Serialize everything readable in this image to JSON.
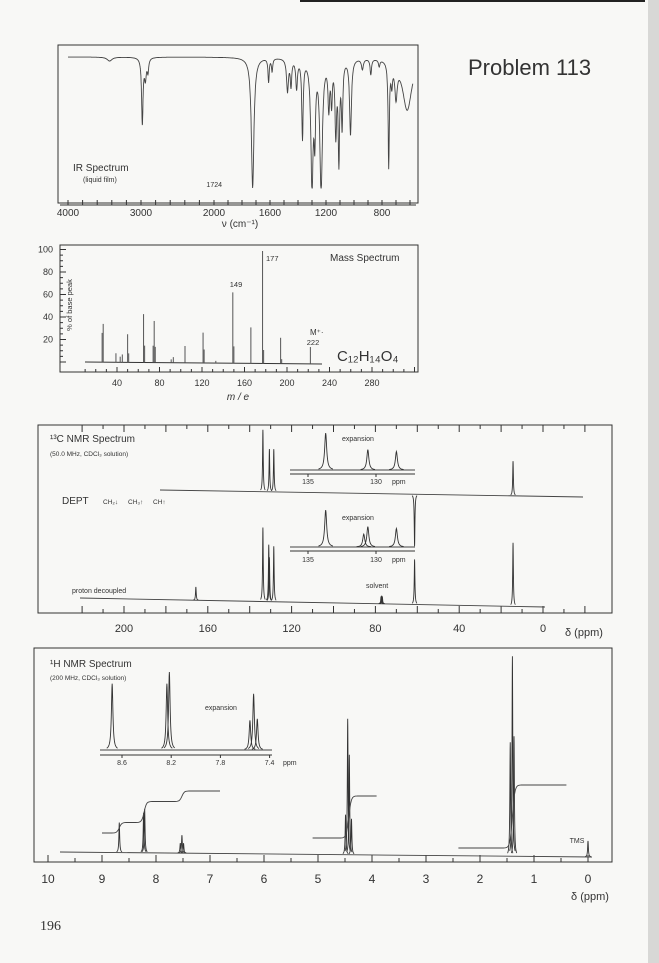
{
  "page": {
    "problem_title": "Problem 113",
    "page_number": "196"
  },
  "chart_data": [
    {
      "type": "line",
      "title": "IR Spectrum",
      "subtitle": "(liquid film)",
      "xlabel": "ν (cm⁻¹)",
      "xlim": [
        4000,
        580
      ],
      "xticks": [
        "4000",
        "3000",
        "2000",
        "1600",
        "1200",
        "800"
      ],
      "annotation": "1724",
      "bands": [
        {
          "wavenumber": 3430,
          "absorbance": 0.03,
          "width": 40
        },
        {
          "wavenumber": 2982,
          "absorbance": 0.5,
          "width": 12
        },
        {
          "wavenumber": 2940,
          "absorbance": 0.15,
          "width": 15
        },
        {
          "wavenumber": 2905,
          "absorbance": 0.1,
          "width": 12
        },
        {
          "wavenumber": 1724,
          "absorbance": 1.0,
          "width": 11
        },
        {
          "wavenumber": 1610,
          "absorbance": 0.18,
          "width": 5
        },
        {
          "wavenumber": 1585,
          "absorbance": 0.1,
          "width": 5
        },
        {
          "wavenumber": 1475,
          "absorbance": 0.25,
          "width": 8
        },
        {
          "wavenumber": 1450,
          "absorbance": 0.2,
          "width": 6
        },
        {
          "wavenumber": 1410,
          "absorbance": 0.22,
          "width": 7
        },
        {
          "wavenumber": 1368,
          "absorbance": 0.6,
          "width": 6
        },
        {
          "wavenumber": 1300,
          "absorbance": 0.95,
          "width": 10
        },
        {
          "wavenumber": 1280,
          "absorbance": 0.5,
          "width": 6
        },
        {
          "wavenumber": 1235,
          "absorbance": 1.0,
          "width": 11
        },
        {
          "wavenumber": 1180,
          "absorbance": 0.35,
          "width": 7
        },
        {
          "wavenumber": 1160,
          "absorbance": 0.3,
          "width": 6
        },
        {
          "wavenumber": 1130,
          "absorbance": 0.55,
          "width": 7
        },
        {
          "wavenumber": 1108,
          "absorbance": 0.75,
          "width": 6
        },
        {
          "wavenumber": 1085,
          "absorbance": 0.5,
          "width": 6
        },
        {
          "wavenumber": 1025,
          "absorbance": 0.58,
          "width": 8
        },
        {
          "wavenumber": 940,
          "absorbance": 0.08,
          "width": 8
        },
        {
          "wavenumber": 880,
          "absorbance": 0.12,
          "width": 6
        },
        {
          "wavenumber": 820,
          "absorbance": 0.05,
          "width": 6
        },
        {
          "wavenumber": 752,
          "absorbance": 0.8,
          "width": 5
        },
        {
          "wavenumber": 730,
          "absorbance": 0.15,
          "width": 6
        },
        {
          "wavenumber": 700,
          "absorbance": 0.25,
          "width": 10
        },
        {
          "wavenumber": 620,
          "absorbance": 0.4,
          "width": 40
        }
      ]
    },
    {
      "type": "bar",
      "title": "Mass Spectrum",
      "xlabel": "m / e",
      "ylabel": "% of base peak",
      "xlim": [
        0,
        320
      ],
      "ylim": [
        0,
        100
      ],
      "xticks": [
        "40",
        "80",
        "120",
        "160",
        "200",
        "240",
        "280"
      ],
      "yticks": [
        "20",
        "40",
        "60",
        "80",
        "100"
      ],
      "formula": "C₁₂H₁₄O₄",
      "molecular_ion_label": "M⁺·",
      "labeled_peaks": [
        "149",
        "177",
        "222"
      ],
      "peaks": [
        {
          "mz": 26,
          "intensity": 26
        },
        {
          "mz": 27,
          "intensity": 34
        },
        {
          "mz": 39,
          "intensity": 8
        },
        {
          "mz": 43,
          "intensity": 5
        },
        {
          "mz": 45,
          "intensity": 7
        },
        {
          "mz": 50,
          "intensity": 25
        },
        {
          "mz": 51,
          "intensity": 8
        },
        {
          "mz": 65,
          "intensity": 43
        },
        {
          "mz": 66,
          "intensity": 15
        },
        {
          "mz": 74,
          "intensity": 15
        },
        {
          "mz": 75,
          "intensity": 37
        },
        {
          "mz": 76,
          "intensity": 14
        },
        {
          "mz": 91,
          "intensity": 3
        },
        {
          "mz": 93,
          "intensity": 5
        },
        {
          "mz": 104,
          "intensity": 15
        },
        {
          "mz": 121,
          "intensity": 27
        },
        {
          "mz": 122,
          "intensity": 12
        },
        {
          "mz": 133,
          "intensity": 2
        },
        {
          "mz": 149,
          "intensity": 63
        },
        {
          "mz": 150,
          "intensity": 15
        },
        {
          "mz": 166,
          "intensity": 32
        },
        {
          "mz": 177,
          "intensity": 100
        },
        {
          "mz": 178,
          "intensity": 12
        },
        {
          "mz": 194,
          "intensity": 23
        },
        {
          "mz": 195,
          "intensity": 4
        },
        {
          "mz": 222,
          "intensity": 15
        }
      ]
    },
    {
      "type": "line",
      "title": "¹³C NMR Spectrum",
      "subtitle": "(50.0 MHz, CDCl₃ solution)",
      "xlabel": "δ (ppm)",
      "xlim": [
        220,
        0
      ],
      "xticks": [
        "200",
        "160",
        "120",
        "80",
        "40",
        "0"
      ],
      "dept_label": "DEPT",
      "dept_legend": [
        "CH₂↓",
        "CH₃↑",
        "CH↑"
      ],
      "decoupled_label": "proton decoupled",
      "solvent_label": "solvent",
      "dept_peaks": [
        {
          "shift": 133.7,
          "intensity": 1.0
        },
        {
          "shift": 130.6,
          "intensity": 0.69
        },
        {
          "shift": 128.5,
          "intensity": 0.69
        },
        {
          "shift": 61.3,
          "intensity": -0.84
        },
        {
          "shift": 14.3,
          "intensity": 0.56
        }
      ],
      "decoupled_peaks": [
        {
          "shift": 165.7,
          "intensity": 0.18
        },
        {
          "shift": 133.7,
          "intensity": 1.0
        },
        {
          "shift": 130.9,
          "intensity": 0.77
        },
        {
          "shift": 130.6,
          "intensity": 0.6
        },
        {
          "shift": 128.5,
          "intensity": 0.75
        },
        {
          "shift": 77.3,
          "intensity": 0.1
        },
        {
          "shift": 77.0,
          "intensity": 0.11
        },
        {
          "shift": 76.7,
          "intensity": 0.1
        },
        {
          "shift": 61.3,
          "intensity": 0.61
        },
        {
          "shift": 14.3,
          "intensity": 0.86
        }
      ],
      "insets": [
        {
          "label": "expansion",
          "xticks": [
            "135",
            "130"
          ],
          "unit": "ppm",
          "peaks": [
            {
              "shift": 133.7,
              "intensity": 1.0
            },
            {
              "shift": 130.6,
              "intensity": 0.55
            },
            {
              "shift": 128.5,
              "intensity": 0.5
            }
          ]
        },
        {
          "label": "expansion",
          "xticks": [
            "135",
            "130"
          ],
          "unit": "ppm",
          "peaks": [
            {
              "shift": 133.7,
              "intensity": 1.0
            },
            {
              "shift": 130.9,
              "intensity": 0.35
            },
            {
              "shift": 130.6,
              "intensity": 0.55
            },
            {
              "shift": 128.5,
              "intensity": 0.5
            }
          ]
        }
      ]
    },
    {
      "type": "line",
      "title": "¹H NMR Spectrum",
      "subtitle": "(200 MHz, CDCl₃ solution)",
      "xlabel": "δ (ppm)",
      "xlim": [
        10,
        0
      ],
      "xticks": [
        "10",
        "9",
        "8",
        "7",
        "6",
        "5",
        "4",
        "3",
        "2",
        "1",
        "0"
      ],
      "tms_label": "TMS",
      "peaks": [
        {
          "shift": 8.68,
          "intensity": 0.15
        },
        {
          "shift": 8.23,
          "intensity": 0.2
        },
        {
          "shift": 8.21,
          "intensity": 0.22
        },
        {
          "shift": 7.55,
          "intensity": 0.05
        },
        {
          "shift": 7.52,
          "intensity": 0.09
        },
        {
          "shift": 7.49,
          "intensity": 0.05
        },
        {
          "shift": 4.49,
          "intensity": 0.2
        },
        {
          "shift": 4.45,
          "intensity": 0.68
        },
        {
          "shift": 4.42,
          "intensity": 0.5
        },
        {
          "shift": 4.38,
          "intensity": 0.18
        },
        {
          "shift": 1.44,
          "intensity": 0.57
        },
        {
          "shift": 1.4,
          "intensity": 1.0
        },
        {
          "shift": 1.37,
          "intensity": 0.6
        },
        {
          "shift": 0.0,
          "intensity": 0.08
        }
      ],
      "integrals": [
        {
          "from": 9.0,
          "to": 6.8,
          "steps": [
            {
              "shift": 8.68,
              "protons": 1
            },
            {
              "shift": 8.22,
              "protons": 2
            },
            {
              "shift": 7.52,
              "protons": 1
            }
          ]
        },
        {
          "from": 5.1,
          "to": 3.9,
          "steps": [
            {
              "shift": 4.43,
              "protons": 4
            }
          ]
        },
        {
          "from": 2.4,
          "to": 0.4,
          "steps": [
            {
              "shift": 1.4,
              "protons": 6
            }
          ]
        }
      ],
      "inset": {
        "label": "expansion",
        "xticks": [
          "8.6",
          "8.2",
          "7.8",
          "7.4"
        ],
        "unit": "ppm",
        "peaks": [
          {
            "shift": 8.68,
            "intensity": 0.85
          },
          {
            "shift": 8.235,
            "intensity": 0.85
          },
          {
            "shift": 8.215,
            "intensity": 1.0
          },
          {
            "shift": 7.56,
            "intensity": 0.38
          },
          {
            "shift": 7.53,
            "intensity": 0.72
          },
          {
            "shift": 7.5,
            "intensity": 0.4
          }
        ]
      }
    }
  ]
}
